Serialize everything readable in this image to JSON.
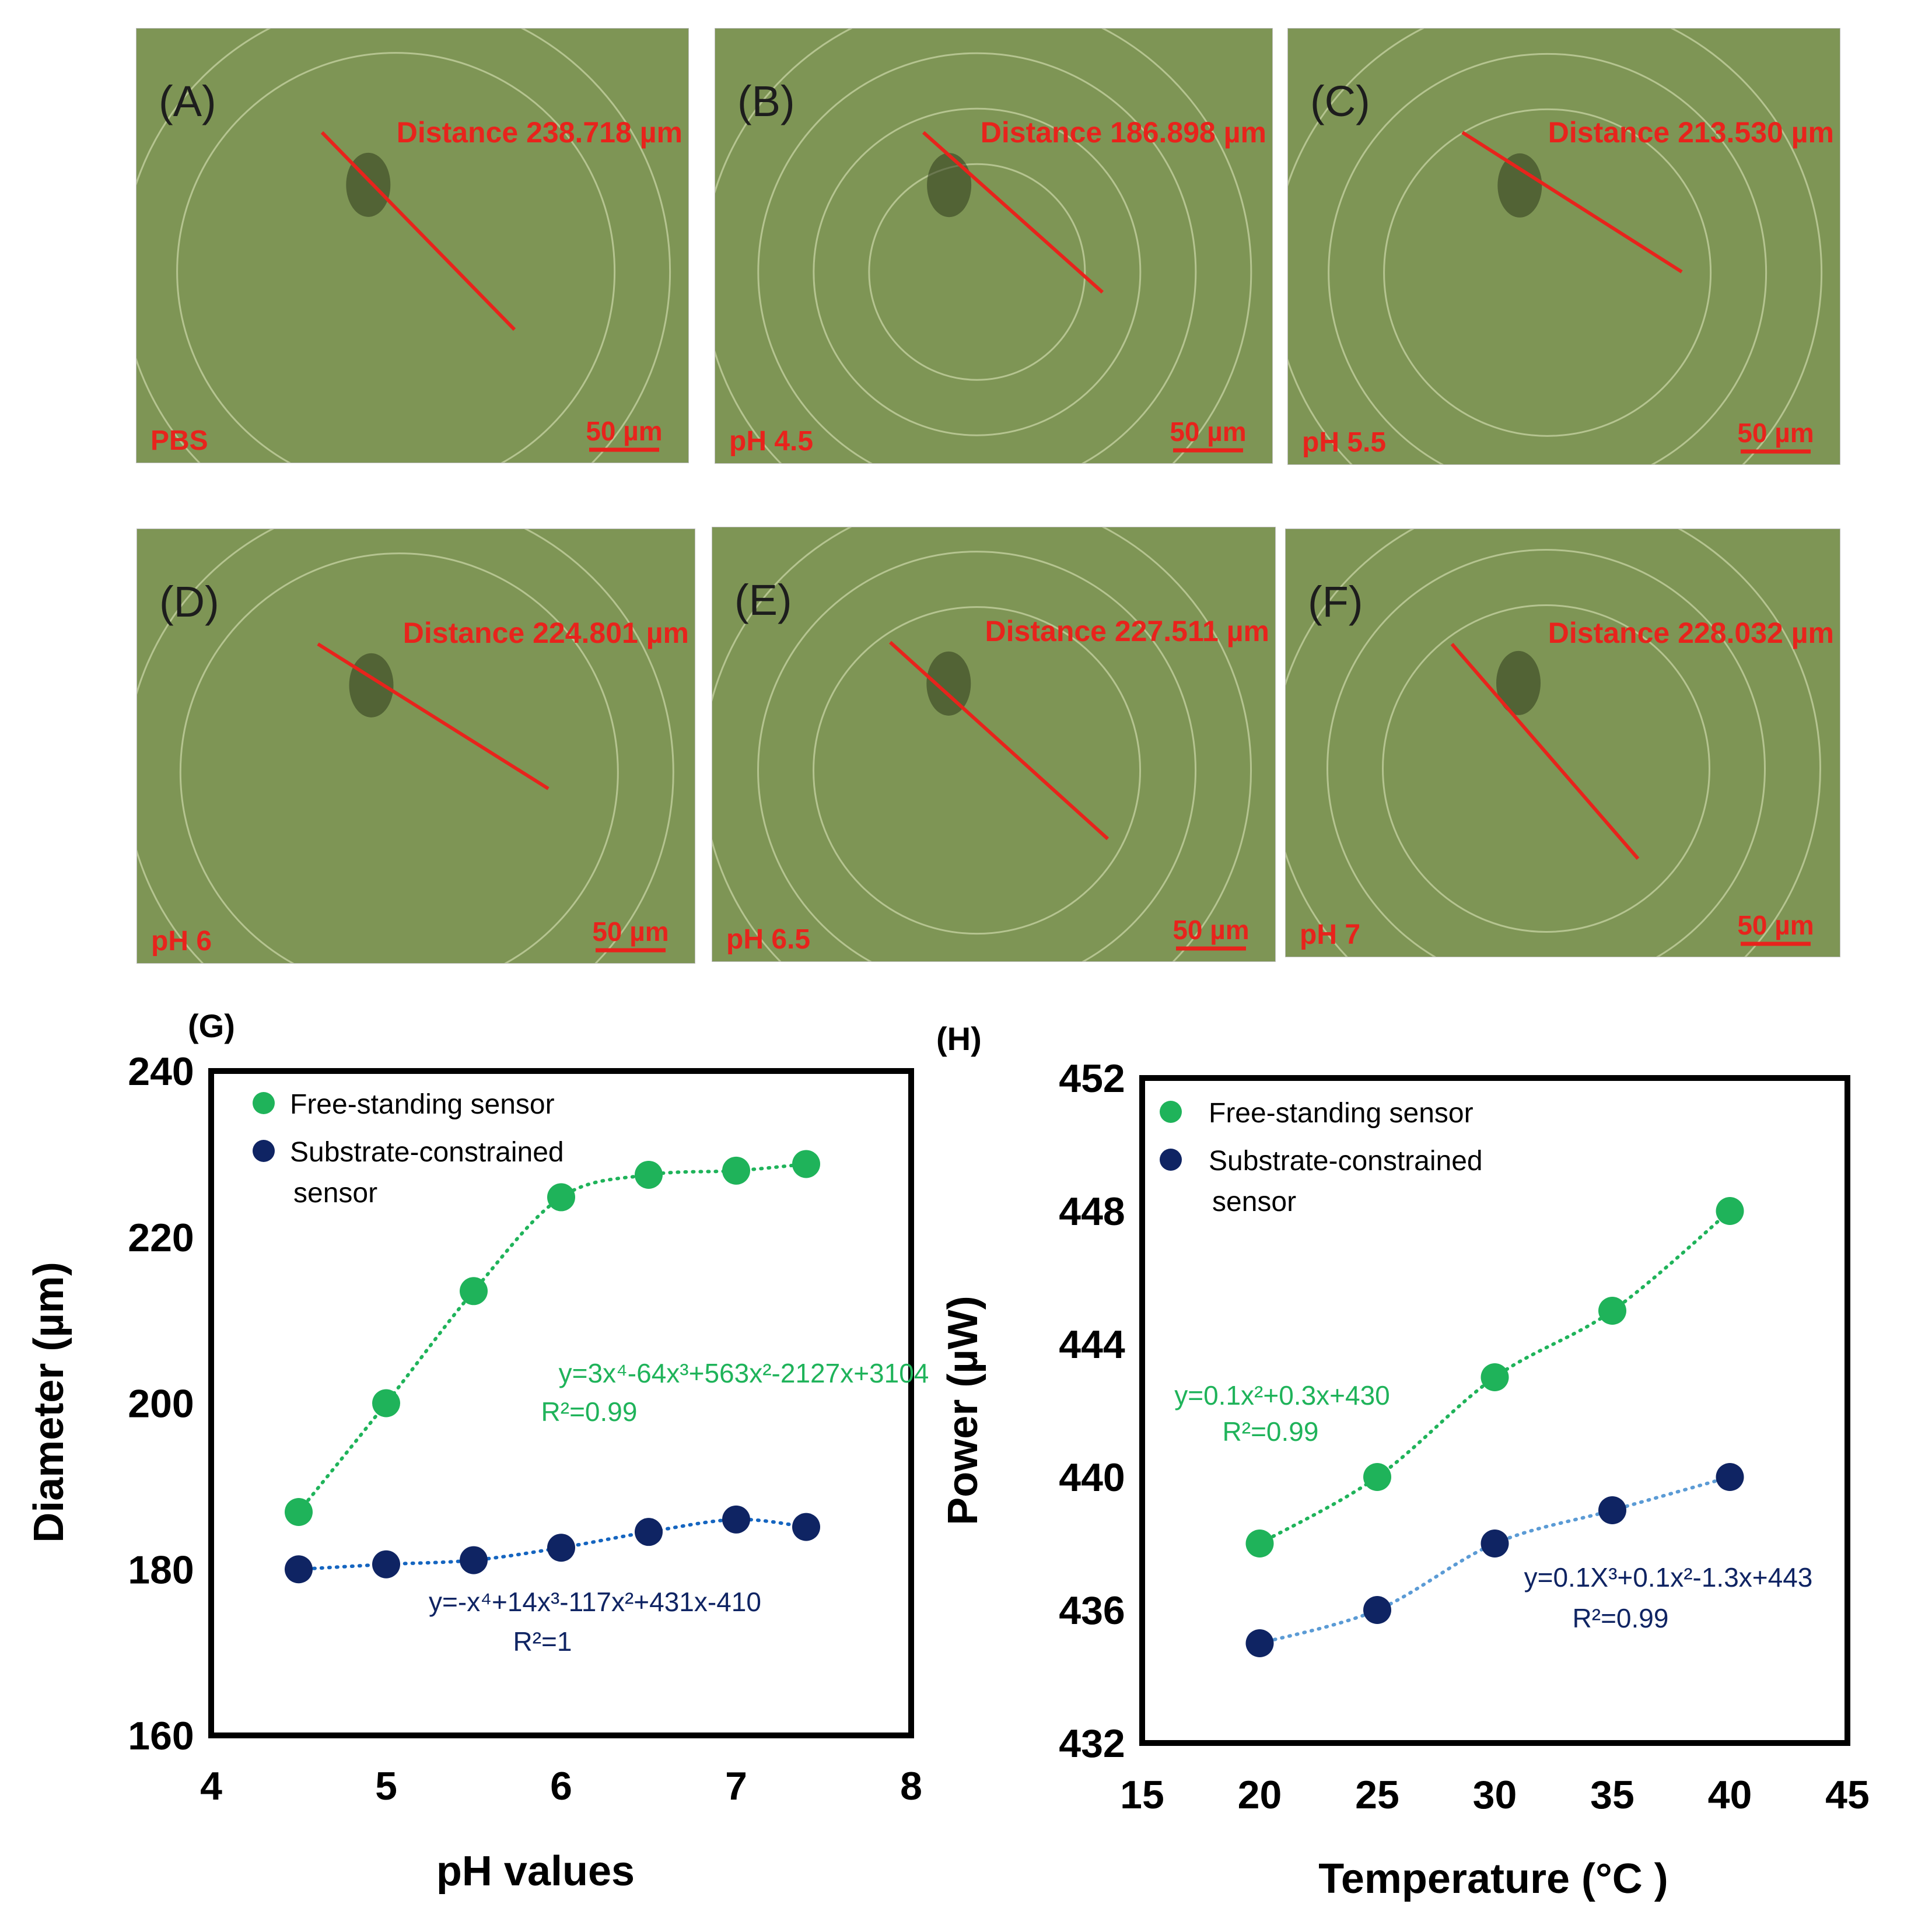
{
  "figure": {
    "micrographs": [
      {
        "letter": "(A)",
        "condition": "PBS",
        "distance_label": "Distance 238.718 µm",
        "scale_label": "50 µm",
        "rings": 2
      },
      {
        "letter": "(B)",
        "condition": "pH 4.5",
        "distance_label": "Distance 186.898 µm",
        "scale_label": "50 µm",
        "rings": 4
      },
      {
        "letter": "(C)",
        "condition": "pH 5.5",
        "distance_label": "Distance 213.530 µm",
        "scale_label": "50 µm",
        "rings": 3
      },
      {
        "letter": "(D)",
        "condition": "pH 6",
        "distance_label": "Distance 224.801 µm",
        "scale_label": "50 µm",
        "rings": 2
      },
      {
        "letter": "(E)",
        "condition": "pH 6.5",
        "distance_label": "Distance 227.511 µm",
        "scale_label": "50 µm",
        "rings": 3
      },
      {
        "letter": "(F)",
        "condition": "pH 7",
        "distance_label": "Distance 228.032 µm",
        "scale_label": "50 µm",
        "rings": 3
      }
    ],
    "colors": {
      "micrograph_bg": "#7e9555",
      "micrograph_ring": "#c3cf9f",
      "measure_red": "#e8231c",
      "free_standing": "#1fb35a",
      "free_standing_trend": "#1fb35a",
      "constrained": "#0f2463",
      "constrained_trend_g": "#1565c0",
      "constrained_trend_h": "#5b9bd5",
      "axis": "#000000"
    }
  },
  "chart_data": [
    {
      "panel": "(G)",
      "type": "scatter",
      "xlabel": "pH values",
      "ylabel": "Diameter (µm)",
      "xlim": [
        4,
        8
      ],
      "ylim": [
        160,
        240
      ],
      "xticks": [
        4,
        5,
        6,
        7,
        8
      ],
      "yticks": [
        160,
        180,
        200,
        220,
        240
      ],
      "legend_position": "top-left",
      "series": [
        {
          "name": "Free-standing sensor",
          "x": [
            4.5,
            5,
            5.5,
            6,
            6.5,
            7,
            7.4
          ],
          "y": [
            186.9,
            200.0,
            213.5,
            224.8,
            227.5,
            228.0,
            228.8
          ],
          "trendline": "dotted"
        },
        {
          "name": "Substrate-constrained sensor",
          "x": [
            4.5,
            5,
            5.5,
            6,
            6.5,
            7,
            7.4
          ],
          "y": [
            180.0,
            180.6,
            181.1,
            182.6,
            184.5,
            186.0,
            185.1
          ],
          "trendline": "dotted"
        }
      ],
      "annotations": [
        {
          "text": "y=3x⁴-64x³+563x²-2127x+3104",
          "series": 0
        },
        {
          "text": "R²=0.99",
          "series": 0
        },
        {
          "text": "y=-x⁴+14x³-117x²+431x-410",
          "series": 1
        },
        {
          "text": "R²=1",
          "series": 1
        }
      ]
    },
    {
      "panel": "(H)",
      "type": "scatter",
      "xlabel": "Temperature (°C )",
      "ylabel": "Power (µW)",
      "xlim": [
        15,
        45
      ],
      "ylim": [
        432,
        452
      ],
      "xticks": [
        15,
        20,
        25,
        30,
        35,
        40,
        45
      ],
      "yticks": [
        432,
        436,
        440,
        444,
        448,
        452
      ],
      "legend_position": "top-left",
      "series": [
        {
          "name": "Free-standing sensor",
          "x": [
            20,
            25,
            30,
            35,
            40
          ],
          "y": [
            438,
            440,
            443,
            445,
            448
          ],
          "trendline": "dotted"
        },
        {
          "name": "Substrate-constrained sensor",
          "x": [
            20,
            25,
            30,
            35,
            40
          ],
          "y": [
            435,
            436,
            438,
            439,
            440
          ],
          "trendline": "dotted"
        }
      ],
      "annotations": [
        {
          "text": "y=0.1x²+0.3x+430",
          "series": 0
        },
        {
          "text": "R²=0.99",
          "series": 0
        },
        {
          "text": "y=0.1X³+0.1x²-1.3x+443",
          "series": 1
        },
        {
          "text": "R²=0.99",
          "series": 1
        }
      ]
    }
  ]
}
